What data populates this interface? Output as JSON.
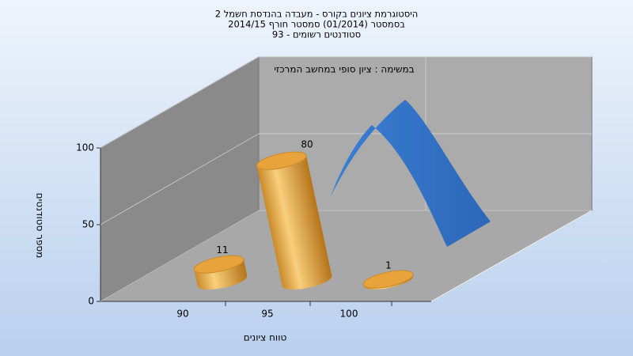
{
  "chart_data": {
    "type": "bar3d",
    "title": "היסטוגרמת ציונים בקורס - מעבדה בהנדסת חשמל 2",
    "subtitle": "בסמסטר  (01/2014)  סמסטר חורף 2014/15",
    "subtitle2": "סטודנטים רשומים - 93",
    "annotation": "במשימה : ציון סופי במחשב המרכזי",
    "x_label": "טווח ציונים",
    "y_label": "מספר סטודנטים",
    "categories": [
      "90",
      "95",
      "100"
    ],
    "values": [
      11,
      80,
      1
    ],
    "color": "#e8a33c",
    "ylim": [
      0,
      100
    ],
    "yticks": [
      0,
      50,
      100
    ],
    "grid": true
  }
}
